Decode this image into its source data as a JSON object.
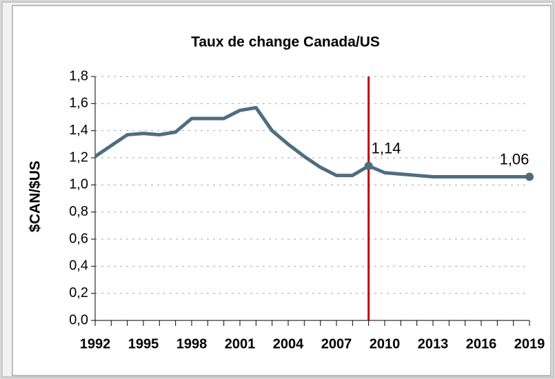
{
  "chart_data": {
    "type": "line",
    "title": "Taux de change Canada/US",
    "y_label": "$CAN/$US",
    "x": [
      1992,
      1993,
      1994,
      1995,
      1996,
      1997,
      1998,
      1999,
      2000,
      2001,
      2002,
      2003,
      2004,
      2005,
      2006,
      2007,
      2008,
      2009,
      2010,
      2011,
      2012,
      2013,
      2014,
      2015,
      2016,
      2017,
      2018,
      2019
    ],
    "series": [
      {
        "name": "Taux de change",
        "color": "#4f6d80",
        "values": [
          1.21,
          1.29,
          1.37,
          1.38,
          1.37,
          1.39,
          1.49,
          1.49,
          1.49,
          1.55,
          1.57,
          1.4,
          1.3,
          1.21,
          1.13,
          1.07,
          1.07,
          1.14,
          1.09,
          1.08,
          1.07,
          1.06,
          1.06,
          1.06,
          1.06,
          1.06,
          1.06,
          1.06
        ],
        "value_labels": [
          null,
          null,
          null,
          null,
          null,
          null,
          null,
          null,
          null,
          null,
          null,
          null,
          null,
          null,
          null,
          null,
          null,
          "1,14",
          null,
          null,
          null,
          null,
          null,
          null,
          null,
          null,
          null,
          "1,06"
        ]
      }
    ],
    "xlim": [
      1992,
      2019
    ],
    "xticks": [
      1992,
      1995,
      1998,
      2001,
      2004,
      2007,
      2010,
      2013,
      2016,
      2019
    ],
    "ylim": [
      0,
      1.8
    ],
    "yticks": [
      {
        "value": 0,
        "label": "0,0"
      },
      {
        "value": 0.2,
        "label": "0,2"
      },
      {
        "value": 0.4,
        "label": "0,4"
      },
      {
        "value": 0.6,
        "label": "0,6"
      },
      {
        "value": 0.8,
        "label": "0,8"
      },
      {
        "value": 1,
        "label": "1,0"
      },
      {
        "value": 1.2,
        "label": "1,2"
      },
      {
        "value": 1.4,
        "label": "1,4"
      },
      {
        "value": 1.6,
        "label": "1,6"
      },
      {
        "value": 1.8,
        "label": "1,8"
      }
    ],
    "grid": true,
    "reference_line": {
      "x": 2009,
      "color": "#c00000"
    }
  }
}
